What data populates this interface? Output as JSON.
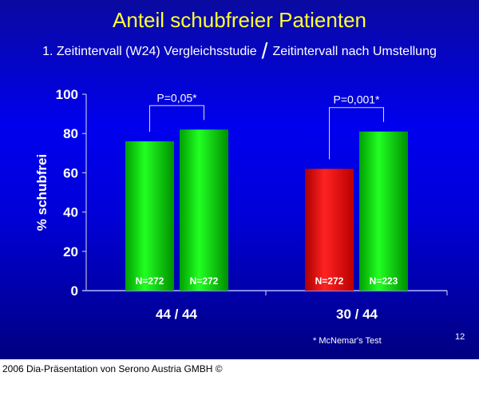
{
  "title": "Anteil schubfreier Patienten",
  "subtitle": {
    "left": "1. Zeitintervall (W24) Vergleichsstudie",
    "separator": "/",
    "right": "Zeitintervall nach Umstellung"
  },
  "footnote": "* McNemar's Test",
  "slide_number": "12",
  "footer": "2006 Dia-Präsentation von Serono Austria GMBH ©",
  "chart_data": {
    "type": "bar",
    "ylabel": "% schubfrei",
    "ylim": [
      0,
      100
    ],
    "yticks": [
      0,
      20,
      40,
      60,
      80,
      100
    ],
    "categories": [
      "44 / 44",
      "30 / 44"
    ],
    "bars": [
      {
        "category": "44 / 44",
        "value": 76,
        "label": "N=272",
        "color": "#00dd00"
      },
      {
        "category": "44 / 44",
        "value": 82,
        "label": "N=272",
        "color": "#00dd00"
      },
      {
        "category": "30 / 44",
        "value": 62,
        "label": "N=272",
        "color": "#ee1111"
      },
      {
        "category": "30 / 44",
        "value": 81,
        "label": "N=223",
        "color": "#00dd00"
      }
    ],
    "annotations": [
      {
        "text": "P=0,05*",
        "bars": [
          0,
          1
        ]
      },
      {
        "text": "P=0,001*",
        "bars": [
          2,
          3
        ]
      }
    ]
  }
}
